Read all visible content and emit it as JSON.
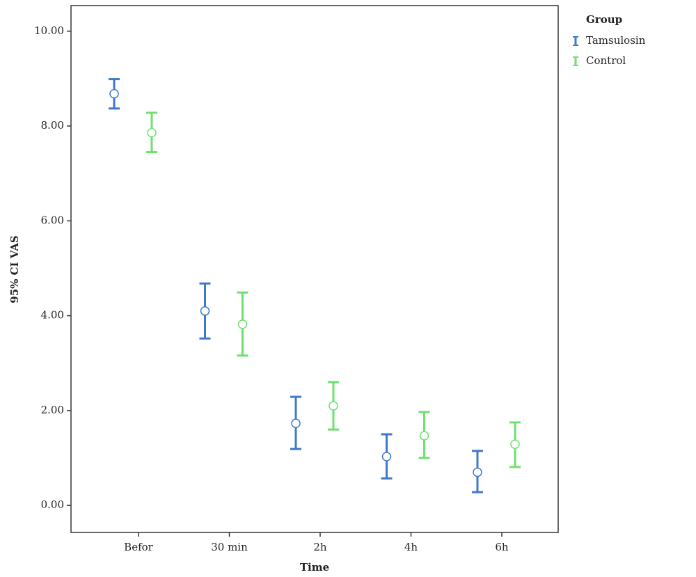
{
  "chart_data": {
    "type": "errorbar",
    "x_label": "Time",
    "y_label": "95% CI VAS",
    "legend_title": "Group",
    "categories": [
      "Befor",
      "30 min",
      "2h",
      "4h",
      "6h"
    ],
    "series": [
      {
        "name": "Tamsulosin",
        "color": "#3f78cc",
        "values": [
          8.68,
          4.1,
          1.73,
          1.03,
          0.7
        ],
        "lower": [
          8.37,
          3.52,
          1.19,
          0.57,
          0.28
        ],
        "upper": [
          8.99,
          4.68,
          2.29,
          1.5,
          1.15
        ]
      },
      {
        "name": "Control",
        "color": "#6fe06f",
        "values": [
          7.86,
          3.82,
          2.1,
          1.47,
          1.29
        ],
        "lower": [
          7.45,
          3.16,
          1.6,
          1.0,
          0.81
        ],
        "upper": [
          8.28,
          4.49,
          2.6,
          1.97,
          1.75
        ]
      }
    ],
    "ylim": [
      -0.57,
      10.54
    ],
    "yticks": [
      {
        "value": 0,
        "label": "0.00"
      },
      {
        "value": 2,
        "label": "2.00"
      },
      {
        "value": 4,
        "label": "4.00"
      },
      {
        "value": 6,
        "label": "6.00"
      },
      {
        "value": 8,
        "label": "8.00"
      },
      {
        "value": 10,
        "label": "10.00"
      }
    ],
    "legend_position": "right"
  }
}
